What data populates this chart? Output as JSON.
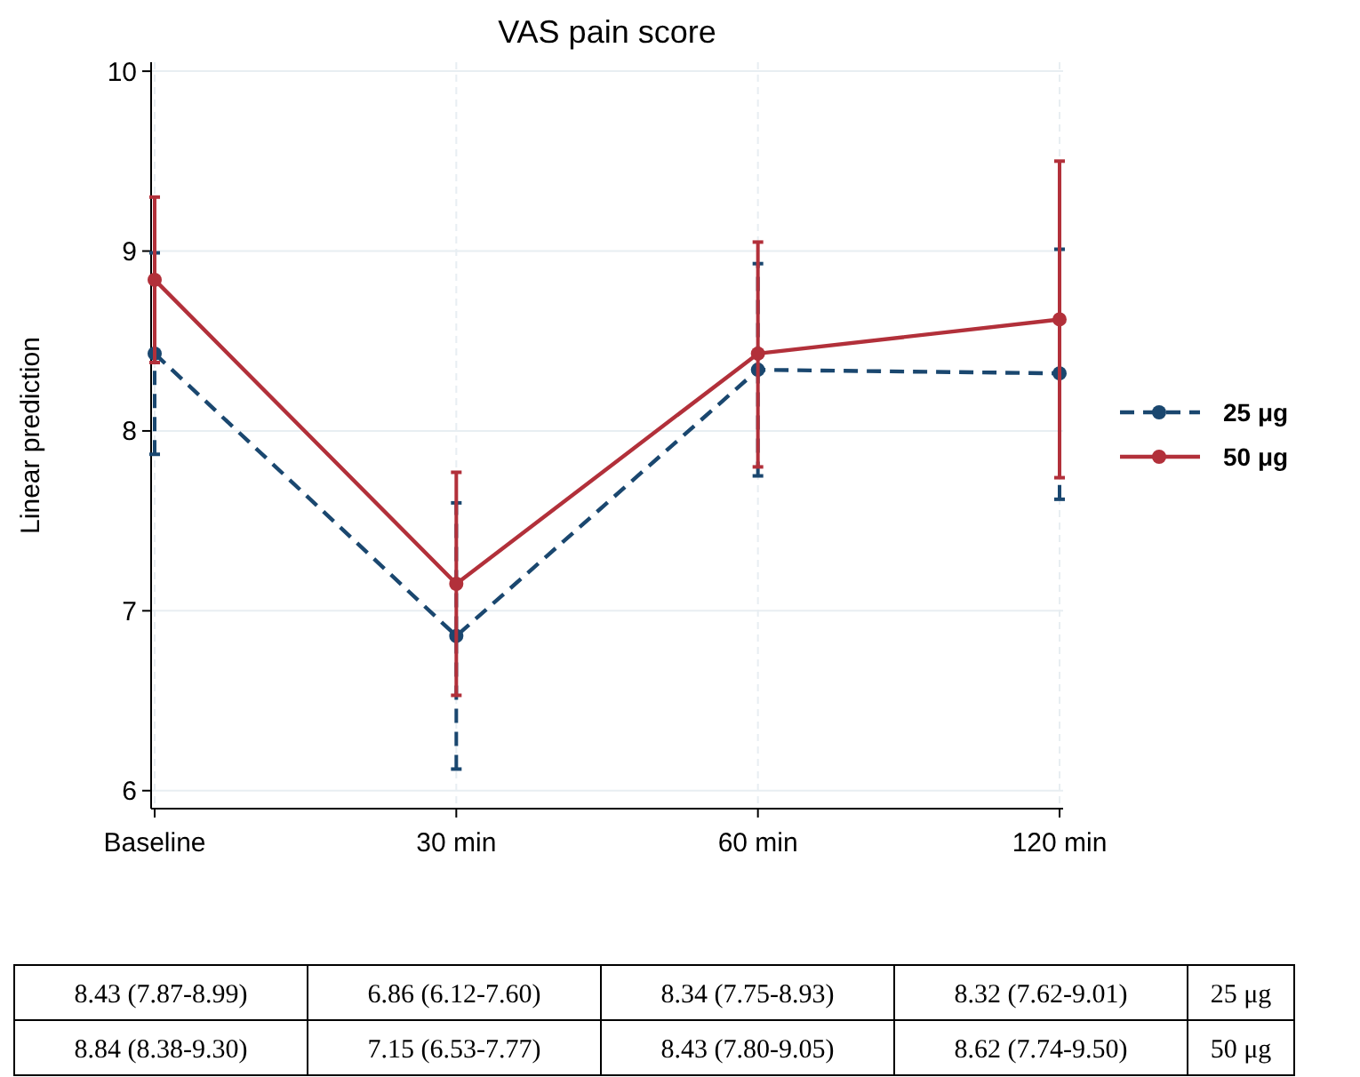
{
  "chart_data": {
    "type": "line",
    "title": "VAS pain score",
    "ylabel": "Linear prediction",
    "categories": [
      "Baseline",
      "30 min",
      "60 min",
      "120 min"
    ],
    "ylim": [
      5.9,
      10.05
    ],
    "yticks": [
      6,
      7,
      8,
      9,
      10
    ],
    "grid": true,
    "legend": "right",
    "marker": "circle",
    "series": [
      {
        "name": "25 μg",
        "color": "#1a476f",
        "line_style": "dashed",
        "values": [
          8.43,
          6.86,
          8.34,
          8.32
        ],
        "errors": [
          [
            7.87,
            8.99
          ],
          [
            6.12,
            7.6
          ],
          [
            7.75,
            8.93
          ],
          [
            7.62,
            9.01
          ]
        ],
        "value_labels": [
          "8.43 (7.87-8.99)",
          "6.86 (6.12-7.60)",
          "8.34 (7.75-8.93)",
          "8.32 (7.62-9.01)"
        ]
      },
      {
        "name": "50 μg",
        "color": "#b2303a",
        "line_style": "solid",
        "values": [
          8.84,
          7.15,
          8.43,
          8.62
        ],
        "errors": [
          [
            8.38,
            9.3
          ],
          [
            6.53,
            7.77
          ],
          [
            7.8,
            9.05
          ],
          [
            7.74,
            9.5
          ]
        ],
        "value_labels": [
          "8.84 (8.38-9.30)",
          "7.15 (6.53-7.77)",
          "8.43 (7.80-9.05)",
          "8.62 (7.74-9.50)"
        ]
      }
    ]
  }
}
